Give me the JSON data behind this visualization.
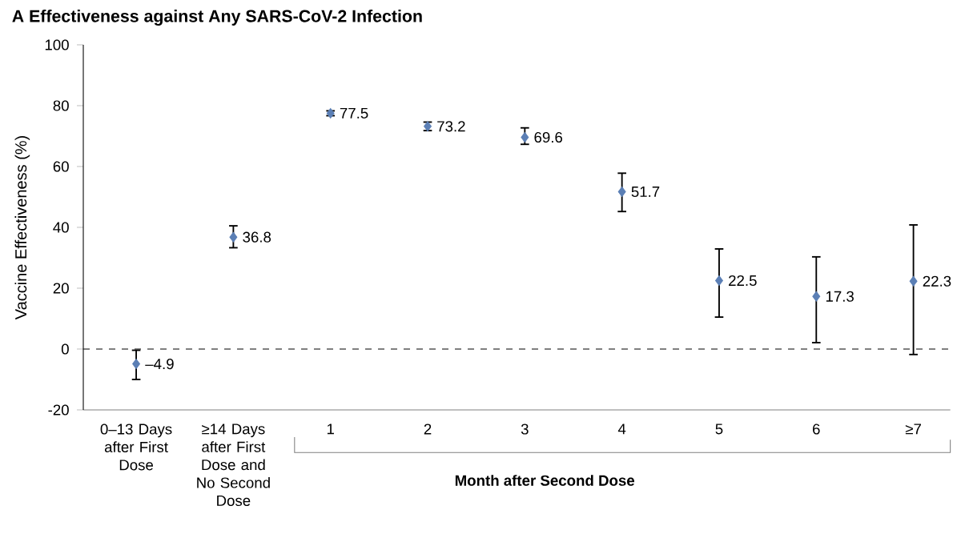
{
  "chart_data": {
    "type": "scatter",
    "title": "A  Effectiveness against Any SARS-CoV-2 Infection",
    "ylabel": "Vaccine Effectiveness (%)",
    "categories": [
      "0–13 Days after First Dose",
      "≥14 Days after First Dose and No Second Dose",
      "1",
      "2",
      "3",
      "4",
      "5",
      "6",
      "≥7"
    ],
    "values": [
      -4.9,
      36.8,
      77.5,
      73.2,
      69.6,
      51.7,
      22.5,
      17.3,
      22.3
    ],
    "errors": [
      [
        -10.0,
        -0.4
      ],
      [
        33.3,
        40.5
      ],
      [
        76.7,
        78.3
      ],
      [
        71.8,
        74.6
      ],
      [
        67.3,
        72.7
      ],
      [
        45.2,
        57.8
      ],
      [
        10.5,
        32.9
      ],
      [
        2.1,
        30.3
      ],
      [
        -1.8,
        40.8
      ]
    ],
    "value_labels": [
      "–4.9",
      "36.8",
      "77.5",
      "73.2",
      "69.6",
      "51.7",
      "22.5",
      "17.3",
      "22.3"
    ],
    "color": "#5b7fb5",
    "marker": "diamond",
    "ylim": [
      -20,
      100
    ],
    "yticks": [
      -20,
      0,
      20,
      40,
      60,
      80,
      100
    ],
    "ref_lines": [
      {
        "axis": "y",
        "value": 0,
        "line_style": "dashed"
      }
    ],
    "annotations": [
      "Month after Second Dose"
    ]
  }
}
